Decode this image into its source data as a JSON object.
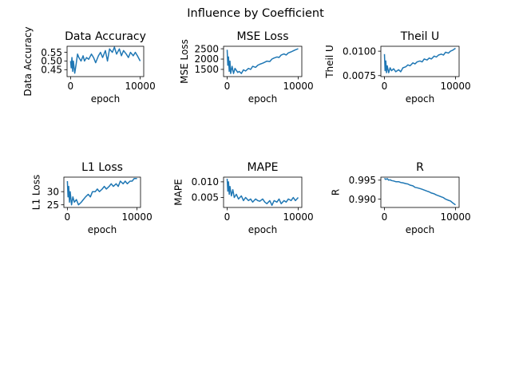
{
  "figure": {
    "suptitle": "Influence by Coefficient"
  },
  "chart_data": [
    {
      "type": "line",
      "title": "Data Accuracy",
      "xlabel": "epoch",
      "ylabel": "Data Accuracy",
      "xlim": [
        -500,
        10500
      ],
      "ylim": [
        0.41,
        0.585
      ],
      "xticks": [
        0,
        10000
      ],
      "xtick_labels": [
        "0",
        "10000"
      ],
      "yticks": [
        0.45,
        0.5,
        0.55
      ],
      "ytick_labels": [
        "0.45",
        "0.50",
        "0.55"
      ],
      "series": [
        {
          "color": "#1f77b4",
          "x": [
            0,
            100,
            200,
            300,
            400,
            600,
            800,
            1000,
            1200,
            1500,
            1800,
            2000,
            2300,
            2600,
            3000,
            3300,
            3600,
            4000,
            4300,
            4600,
            5000,
            5300,
            5600,
            6000,
            6300,
            6600,
            7000,
            7300,
            7600,
            8000,
            8300,
            8600,
            9000,
            9300,
            9600,
            10000
          ],
          "y": [
            0.5,
            0.46,
            0.52,
            0.44,
            0.5,
            0.43,
            0.48,
            0.54,
            0.52,
            0.5,
            0.53,
            0.5,
            0.52,
            0.51,
            0.54,
            0.52,
            0.49,
            0.53,
            0.55,
            0.52,
            0.56,
            0.5,
            0.57,
            0.55,
            0.58,
            0.54,
            0.57,
            0.53,
            0.56,
            0.54,
            0.52,
            0.55,
            0.53,
            0.55,
            0.53,
            0.5
          ]
        }
      ]
    },
    {
      "type": "line",
      "title": "MSE Loss",
      "xlabel": "epoch",
      "ylabel": "MSE Loss",
      "xlim": [
        -500,
        10500
      ],
      "ylim": [
        1150,
        2620
      ],
      "xticks": [
        0,
        10000
      ],
      "xtick_labels": [
        "0",
        "10000"
      ],
      "yticks": [
        1500,
        2000,
        2500
      ],
      "ytick_labels": [
        "1500",
        "2000",
        "2500"
      ],
      "series": [
        {
          "color": "#1f77b4",
          "x": [
            0,
            100,
            200,
            300,
            400,
            500,
            700,
            900,
            1100,
            1300,
            1500,
            1700,
            2000,
            2300,
            2600,
            3000,
            3300,
            3600,
            4000,
            4300,
            4600,
            5000,
            5300,
            5600,
            6000,
            6300,
            6600,
            7000,
            7300,
            7600,
            8000,
            8300,
            8600,
            9000,
            9300,
            9600,
            10000
          ],
          "y": [
            2450,
            1700,
            2100,
            1400,
            1900,
            1300,
            1650,
            1300,
            1550,
            1450,
            1350,
            1400,
            1300,
            1480,
            1420,
            1550,
            1500,
            1650,
            1600,
            1700,
            1750,
            1800,
            1850,
            1900,
            1880,
            2000,
            2050,
            2100,
            2080,
            2200,
            2250,
            2200,
            2300,
            2350,
            2400,
            2450,
            2500
          ]
        }
      ]
    },
    {
      "type": "line",
      "title": "Theil U",
      "xlabel": "epoch",
      "ylabel": "Theil U",
      "xlim": [
        -500,
        10500
      ],
      "ylim": [
        0.0074,
        0.0105
      ],
      "xticks": [
        0,
        10000
      ],
      "xtick_labels": [
        "0",
        "10000"
      ],
      "yticks": [
        0.0075,
        0.01
      ],
      "ytick_labels": [
        "0.0075",
        "0.0100"
      ],
      "series": [
        {
          "color": "#1f77b4",
          "x": [
            0,
            100,
            200,
            300,
            400,
            600,
            800,
            1000,
            1300,
            1600,
            2000,
            2300,
            2600,
            3000,
            3300,
            3600,
            4000,
            4300,
            4600,
            5000,
            5300,
            5600,
            6000,
            6300,
            6600,
            7000,
            7300,
            7600,
            8000,
            8300,
            8600,
            9000,
            9300,
            9600,
            10000
          ],
          "y": [
            0.0097,
            0.008,
            0.009,
            0.0078,
            0.0085,
            0.0078,
            0.0083,
            0.008,
            0.0082,
            0.0079,
            0.0081,
            0.0079,
            0.0083,
            0.0084,
            0.0086,
            0.0085,
            0.0088,
            0.0087,
            0.0089,
            0.009,
            0.0089,
            0.0092,
            0.0091,
            0.0093,
            0.0092,
            0.0095,
            0.0094,
            0.0096,
            0.0097,
            0.0096,
            0.0099,
            0.0098,
            0.01,
            0.0101,
            0.0103
          ]
        }
      ]
    },
    {
      "type": "line",
      "title": "L1 Loss",
      "xlabel": "epoch",
      "ylabel": "L1 Loss",
      "xlim": [
        -500,
        10500
      ],
      "ylim": [
        24,
        35.5
      ],
      "xticks": [
        0,
        10000
      ],
      "xtick_labels": [
        "0",
        "10000"
      ],
      "yticks": [
        25,
        30
      ],
      "ytick_labels": [
        "25",
        "30"
      ],
      "series": [
        {
          "color": "#1f77b4",
          "x": [
            0,
            100,
            200,
            300,
            400,
            600,
            800,
            1000,
            1300,
            1600,
            2000,
            2300,
            2600,
            3000,
            3300,
            3600,
            4000,
            4300,
            4600,
            5000,
            5300,
            5600,
            6000,
            6300,
            6600,
            7000,
            7300,
            7600,
            8000,
            8300,
            8600,
            9000,
            9300,
            9600,
            10000
          ],
          "y": [
            34,
            28,
            32,
            26,
            30,
            25,
            28,
            26,
            27,
            25,
            26,
            27,
            28,
            29,
            28,
            30,
            30,
            31,
            30,
            31,
            32,
            31,
            32,
            33,
            32,
            33,
            32,
            34,
            33,
            34,
            33,
            34,
            34,
            35,
            35
          ]
        }
      ]
    },
    {
      "type": "line",
      "title": "MAPE",
      "xlabel": "epoch",
      "ylabel": "MAPE",
      "xlim": [
        -500,
        10500
      ],
      "ylim": [
        0.0018,
        0.0115
      ],
      "xticks": [
        0,
        10000
      ],
      "xtick_labels": [
        "0",
        "10000"
      ],
      "yticks": [
        0.005,
        0.01
      ],
      "ytick_labels": [
        "0.005",
        "0.010"
      ],
      "series": [
        {
          "color": "#1f77b4",
          "x": [
            0,
            100,
            200,
            300,
            400,
            600,
            800,
            1000,
            1300,
            1600,
            2000,
            2300,
            2600,
            3000,
            3300,
            3600,
            4000,
            4300,
            4600,
            5000,
            5300,
            5600,
            6000,
            6300,
            6600,
            7000,
            7300,
            7600,
            8000,
            8300,
            8600,
            9000,
            9300,
            9600,
            10000
          ],
          "y": [
            0.011,
            0.007,
            0.01,
            0.006,
            0.0085,
            0.0055,
            0.0075,
            0.005,
            0.006,
            0.0045,
            0.0055,
            0.004,
            0.005,
            0.004,
            0.0045,
            0.0035,
            0.0045,
            0.004,
            0.0038,
            0.0045,
            0.0035,
            0.003,
            0.004,
            0.0025,
            0.004,
            0.0035,
            0.0045,
            0.003,
            0.004,
            0.0035,
            0.0045,
            0.004,
            0.005,
            0.004,
            0.005
          ]
        }
      ]
    },
    {
      "type": "line",
      "title": "R",
      "xlabel": "epoch",
      "ylabel": "R",
      "xlim": [
        -500,
        10500
      ],
      "ylim": [
        0.9878,
        0.9958
      ],
      "xticks": [
        0,
        10000
      ],
      "xtick_labels": [
        "0",
        "10000"
      ],
      "yticks": [
        0.99,
        0.995
      ],
      "ytick_labels": [
        "0.990",
        "0.995"
      ],
      "series": [
        {
          "color": "#1f77b4",
          "x": [
            0,
            200,
            400,
            600,
            800,
            1000,
            1300,
            1600,
            2000,
            2300,
            2600,
            3000,
            3300,
            3600,
            4000,
            4300,
            4600,
            5000,
            5300,
            5600,
            6000,
            6300,
            6600,
            7000,
            7300,
            7600,
            8000,
            8300,
            8600,
            9000,
            9300,
            9600,
            10000
          ],
          "y": [
            0.9955,
            0.9952,
            0.9954,
            0.995,
            0.9951,
            0.9949,
            0.9948,
            0.9946,
            0.9946,
            0.9944,
            0.9943,
            0.9941,
            0.994,
            0.9937,
            0.9935,
            0.9931,
            0.993,
            0.9928,
            0.9926,
            0.9924,
            0.9921,
            0.9919,
            0.9916,
            0.9914,
            0.9911,
            0.9909,
            0.9906,
            0.9904,
            0.99,
            0.9897,
            0.9895,
            0.989,
            0.9885
          ]
        }
      ]
    }
  ]
}
